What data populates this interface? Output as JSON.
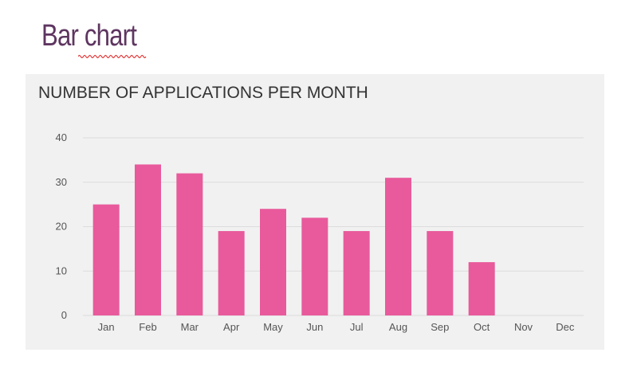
{
  "slide": {
    "title": "Bar chart"
  },
  "colors": {
    "title": "#5e3560",
    "bar": "#e85a9b",
    "panel": "#f1f1f1",
    "grid": "#dcdcdc",
    "spellcheck_underline": "#e03030"
  },
  "chart_data": {
    "type": "bar",
    "title": "NUMBER OF APPLICATIONS PER MONTH",
    "xlabel": "",
    "ylabel": "",
    "categories": [
      "Jan",
      "Feb",
      "Mar",
      "Apr",
      "May",
      "Jun",
      "Jul",
      "Aug",
      "Sep",
      "Oct",
      "Nov",
      "Dec"
    ],
    "values": [
      25,
      34,
      32,
      19,
      24,
      22,
      19,
      31,
      19,
      12,
      null,
      null
    ],
    "ylim": [
      0,
      40
    ],
    "yticks": [
      0,
      10,
      20,
      30,
      40
    ],
    "grid": true,
    "legend": "none"
  }
}
